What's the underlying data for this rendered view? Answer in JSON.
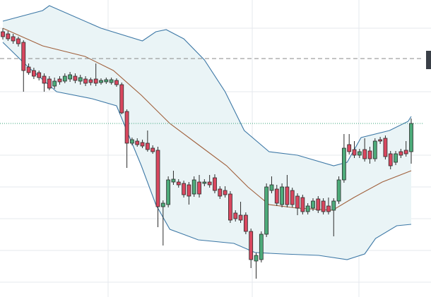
{
  "chart_data": {
    "type": "candlestick",
    "ylim": [
      0,
      421
    ],
    "up_color": "#4dab7a",
    "down_color": "#d9475f",
    "open": [
      376,
      373,
      369,
      366,
      361,
      326,
      321,
      318,
      313,
      309,
      299,
      309,
      306,
      309,
      313,
      306,
      309,
      308,
      309,
      304,
      305,
      304,
      307,
      301,
      263,
      218,
      221,
      219,
      218,
      211,
      208,
      128,
      131,
      163,
      163,
      161,
      159,
      146,
      163,
      161,
      163,
      169,
      153,
      151,
      146,
      119,
      116,
      116,
      93,
      51,
      53,
      89,
      151,
      153,
      131,
      156,
      151,
      143,
      141,
      121,
      126,
      139,
      136,
      129,
      123,
      136,
      166,
      216,
      209,
      201,
      209,
      207,
      196,
      223,
      225,
      203,
      191,
      206,
      208,
      206
    ],
    "high": [
      381,
      377,
      373,
      369,
      364,
      331,
      325,
      321,
      317,
      313,
      311,
      313,
      317,
      319,
      317,
      315,
      313,
      311,
      331,
      310,
      311,
      311,
      310,
      304,
      266,
      226,
      225,
      223,
      236,
      215,
      213,
      137,
      171,
      179,
      167,
      165,
      163,
      171,
      173,
      167,
      173,
      174,
      157,
      157,
      150,
      123,
      135,
      120,
      97,
      63,
      93,
      161,
      171,
      159,
      161,
      173,
      155,
      147,
      145,
      133,
      140,
      143,
      140,
      141,
      140,
      171,
      231,
      231,
      221,
      210,
      225,
      213,
      225,
      227,
      229,
      207,
      207,
      210,
      221,
      253
    ],
    "low": [
      365,
      363,
      359,
      355,
      291,
      315,
      309,
      307,
      291,
      293,
      295,
      301,
      303,
      305,
      303,
      301,
      299,
      300,
      299,
      301,
      302,
      301,
      298,
      259,
      183,
      215,
      213,
      211,
      206,
      203,
      99,
      73,
      127,
      159,
      155,
      141,
      131,
      142,
      141,
      157,
      155,
      147,
      139,
      141,
      105,
      107,
      105,
      89,
      41,
      26,
      49,
      85,
      147,
      129,
      127,
      127,
      127,
      116,
      117,
      117,
      122,
      119,
      117,
      117,
      86,
      132,
      162,
      202,
      197,
      197,
      192,
      189,
      192,
      217,
      195,
      181,
      187,
      197,
      199,
      189
    ],
    "close": [
      369,
      366,
      363,
      359,
      321,
      318,
      313,
      311,
      303,
      296,
      306,
      305,
      313,
      315,
      307,
      311,
      303,
      304,
      303,
      307,
      308,
      308,
      301,
      261,
      218,
      223,
      216,
      214,
      209,
      206,
      128,
      133,
      166,
      167,
      159,
      145,
      143,
      166,
      146,
      163,
      159,
      151,
      143,
      145,
      109,
      111,
      109,
      93,
      53,
      59,
      89,
      156,
      159,
      133,
      156,
      131,
      131,
      126,
      121,
      129,
      136,
      123,
      121,
      121,
      136,
      166,
      211,
      206,
      201,
      206,
      196,
      196,
      221,
      221,
      199,
      186,
      203,
      201,
      203,
      246
    ],
    "bands": [
      {
        "color": "#3d78a6",
        "x": [
          0,
          7.7,
          9,
          19,
          27,
          29.6,
          31.6,
          35,
          39,
          43,
          46.7,
          51.5,
          57,
          64,
          66.6,
          69.3,
          74.8,
          78.4,
          79
        ],
        "values": [
          391,
          406,
          413,
          381,
          363,
          376,
          379,
          366,
          336,
          291,
          236,
          206,
          201,
          186,
          191,
          226,
          236,
          249,
          256
        ]
      },
      {
        "color": "#a0603c",
        "x": [
          0,
          7.7,
          15.9,
          21.4,
          26.8,
          32.3,
          37.8,
          43.3,
          47.4,
          51.5,
          57,
          63.8,
          67.9,
          73.4,
          79
        ],
        "values": [
          381,
          356,
          341,
          321,
          286,
          246,
          216,
          186,
          156,
          131,
          126,
          123,
          141,
          163,
          179
        ]
      },
      {
        "color": "#3d78a6",
        "x": [
          0,
          4.9,
          10.4,
          17.3,
          22,
          26.8,
          29.6,
          32.3,
          37.8,
          44.7,
          48.8,
          54.2,
          61.1,
          66.6,
          70,
          72.1,
          76.2,
          79
        ],
        "values": [
          361,
          326,
          291,
          281,
          271,
          186,
          131,
          96,
          81,
          76,
          63,
          61,
          59,
          53,
          61,
          83,
          101,
          103
        ]
      }
    ],
    "band_fill": "#eaf4f6",
    "hlines": [
      {
        "value": 338,
        "color": "#888888",
        "style": "dashed"
      },
      {
        "value": 246,
        "color": "#3aa57a",
        "style": "dotted"
      }
    ]
  }
}
